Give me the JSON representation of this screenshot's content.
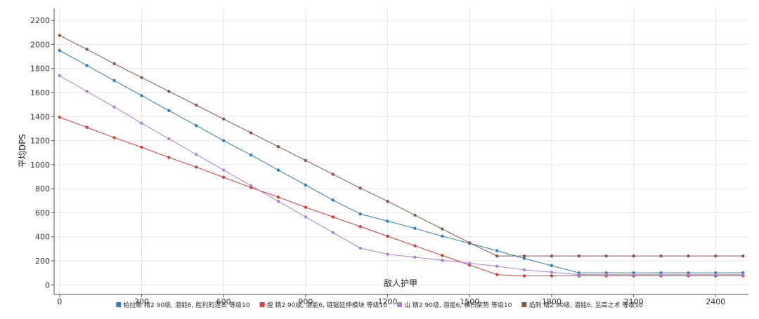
{
  "chart_data": {
    "type": "line",
    "xlabel": "敌人护甲",
    "ylabel": "平均DPS",
    "xlim": [
      -20,
      2520
    ],
    "ylim": [
      -80,
      2300
    ],
    "x_ticks": [
      0,
      300,
      600,
      900,
      1200,
      1500,
      1800,
      2100,
      2400
    ],
    "y_ticks": [
      0,
      200,
      400,
      600,
      800,
      1000,
      1200,
      1400,
      1600,
      1800,
      2000,
      2200
    ],
    "grid": true,
    "legend_position": "bottom",
    "x": [
      0,
      100,
      200,
      300,
      400,
      500,
      600,
      700,
      800,
      900,
      1000,
      1100,
      1200,
      1300,
      1400,
      1500,
      1600,
      1700,
      1800,
      1900,
      2000,
      2100,
      2200,
      2300,
      2400,
      2500
    ],
    "series": [
      {
        "name": "帕拉斯 精2 90级, 潜能6, 胜利的连击 等级10",
        "color": "#2f7fb6",
        "values": [
          1950,
          1825,
          1700,
          1575,
          1450,
          1325,
          1200,
          1080,
          955,
          830,
          705,
          590,
          530,
          470,
          405,
          345,
          285,
          220,
          160,
          100,
          100,
          100,
          100,
          100,
          100,
          100
        ]
      },
      {
        "name": "煌 精2 90级, 潜能6, 链锯延伸模块 等级10",
        "color": "#d93b3b",
        "values": [
          1395,
          1310,
          1225,
          1145,
          1060,
          980,
          895,
          810,
          730,
          645,
          565,
          485,
          405,
          325,
          245,
          165,
          85,
          75,
          75,
          75,
          75,
          75,
          75,
          75,
          75,
          75
        ]
      },
      {
        "name": "山 精2 90级, 潜能6, 横扫架势 等级10",
        "color": "#b07fd0",
        "values": [
          1740,
          1610,
          1480,
          1345,
          1215,
          1085,
          955,
          825,
          695,
          565,
          435,
          305,
          255,
          230,
          205,
          180,
          155,
          125,
          105,
          85,
          85,
          85,
          85,
          85,
          85,
          85
        ]
      },
      {
        "name": "焰刺 精2 90级, 潜能6, 至高之术 等级10",
        "color": "#8c564b",
        "values": [
          2075,
          1960,
          1840,
          1725,
          1610,
          1495,
          1380,
          1265,
          1150,
          1035,
          920,
          805,
          695,
          580,
          465,
          350,
          240,
          240,
          240,
          240,
          240,
          240,
          240,
          240,
          240,
          240
        ]
      }
    ]
  }
}
